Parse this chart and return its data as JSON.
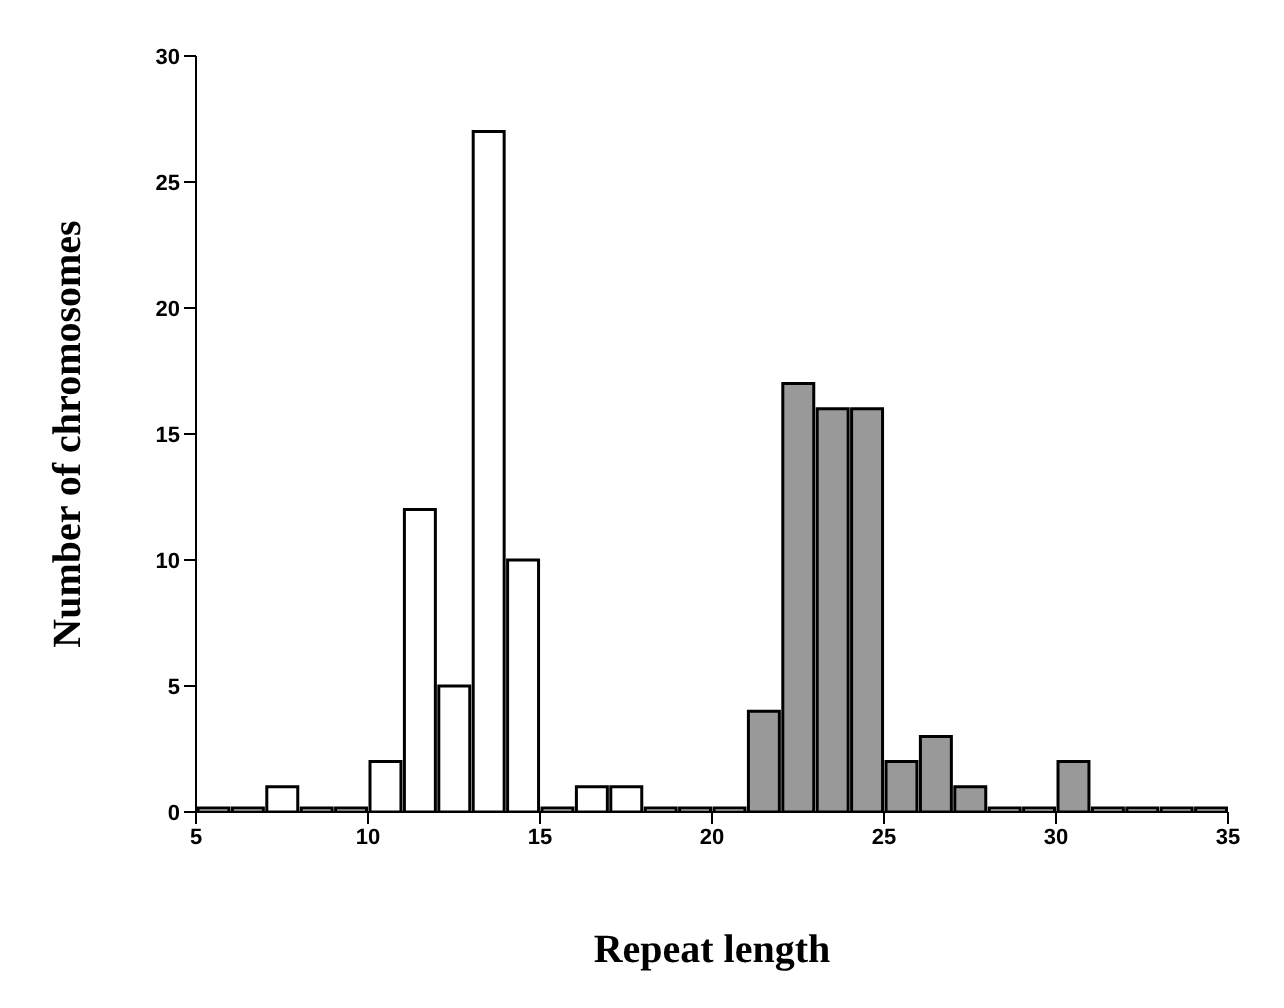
{
  "chart_data": {
    "type": "histogram",
    "xlabel": "Repeat length",
    "ylabel": "Number of chromosomes",
    "bins": [
      5,
      6,
      7,
      8,
      9,
      10,
      11,
      12,
      13,
      14,
      15,
      16,
      17,
      18,
      19,
      20,
      21,
      22,
      23,
      24,
      25,
      26,
      27,
      28,
      29,
      30,
      31,
      32,
      33,
      34,
      35
    ],
    "series": [
      {
        "color": "#ffffff",
        "values": [
          0,
          0,
          1,
          0,
          0,
          2,
          12,
          5,
          27,
          10,
          0,
          1,
          1,
          0,
          0,
          0,
          null,
          null,
          null,
          null,
          null,
          null,
          null,
          0,
          0,
          null,
          0,
          0,
          0,
          0
        ]
      },
      {
        "color": "#999999",
        "values": [
          null,
          null,
          null,
          null,
          null,
          null,
          null,
          null,
          null,
          null,
          null,
          null,
          null,
          null,
          null,
          null,
          4,
          17,
          16,
          16,
          2,
          3,
          1,
          null,
          null,
          2,
          null,
          null,
          null,
          null
        ]
      }
    ],
    "xlim": [
      5,
      35
    ],
    "xticks": [
      5,
      10,
      15,
      20,
      25,
      30,
      35
    ],
    "ylim": [
      0,
      30
    ],
    "yticks": [
      0,
      5,
      10,
      15,
      20,
      25,
      30
    ],
    "grid": false,
    "legend": false
  }
}
